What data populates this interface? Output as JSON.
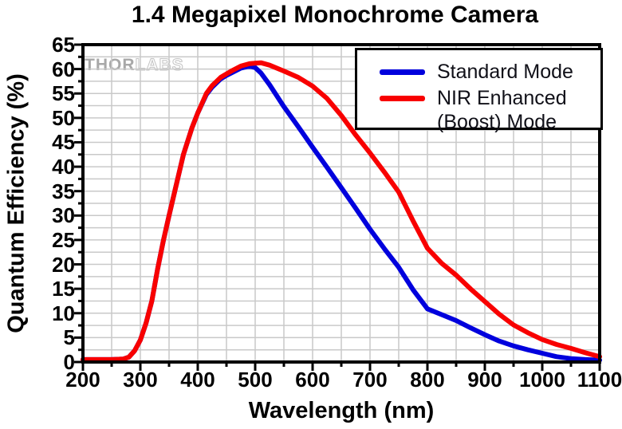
{
  "chart_data": {
    "type": "line",
    "title": "1.4 Megapixel Monochrome Camera",
    "xlabel": "Wavelength (nm)",
    "ylabel": "Quantum Efficiency (%)",
    "xlim": [
      200,
      1100
    ],
    "ylim": [
      0,
      65
    ],
    "x_ticks": [
      200,
      300,
      400,
      500,
      600,
      700,
      800,
      900,
      1000,
      1100
    ],
    "x_minor_tick_step": 50,
    "y_ticks": [
      0,
      5,
      10,
      15,
      20,
      25,
      30,
      35,
      40,
      45,
      50,
      55,
      60,
      65
    ],
    "y_minor_tick_step": 2.5,
    "grid": true,
    "grid_color": "#c9c9c9",
    "axis_color": "#000000",
    "legend_position": "top-right",
    "x": [
      200,
      225,
      250,
      270,
      280,
      290,
      300,
      310,
      320,
      330,
      340,
      350,
      360,
      375,
      390,
      400,
      415,
      425,
      440,
      450,
      460,
      475,
      490,
      500,
      510,
      525,
      550,
      575,
      600,
      625,
      650,
      675,
      700,
      725,
      750,
      775,
      800,
      825,
      850,
      875,
      900,
      925,
      950,
      975,
      1000,
      1025,
      1050,
      1075,
      1100
    ],
    "series": [
      {
        "name": "Standard Mode",
        "color": "#0000dd",
        "values": [
          0.5,
          0.5,
          0.5,
          0.6,
          1.0,
          2.3,
          4.5,
          8.0,
          12.5,
          19.0,
          24.8,
          30.0,
          35.0,
          42.5,
          48.0,
          51.0,
          54.8,
          56.3,
          58.0,
          58.7,
          59.3,
          60.2,
          60.6,
          60.3,
          59.2,
          56.8,
          52.3,
          48.2,
          44.0,
          39.9,
          35.7,
          31.5,
          27.2,
          23.2,
          19.4,
          14.8,
          10.9,
          9.7,
          8.5,
          7.0,
          5.6,
          4.3,
          3.3,
          2.5,
          1.8,
          1.1,
          0.7,
          0.5,
          0.4
        ]
      },
      {
        "name": "NIR Enhanced\n(Boost) Mode",
        "color": "#f80000",
        "values": [
          0.5,
          0.5,
          0.5,
          0.6,
          1.0,
          2.3,
          4.5,
          8.0,
          12.5,
          19.0,
          24.8,
          30.0,
          35.0,
          42.5,
          48.0,
          51.0,
          55.0,
          56.6,
          58.3,
          59.0,
          59.7,
          60.6,
          61.1,
          61.2,
          61.3,
          60.8,
          59.6,
          58.3,
          56.5,
          54.0,
          50.5,
          46.5,
          42.8,
          38.9,
          34.8,
          28.9,
          23.3,
          20.2,
          17.8,
          15.0,
          12.4,
          9.8,
          7.6,
          6.0,
          4.6,
          3.6,
          2.8,
          1.9,
          1.1
        ]
      }
    ],
    "watermark": {
      "part1": "THOR",
      "part2": "LABS"
    }
  }
}
